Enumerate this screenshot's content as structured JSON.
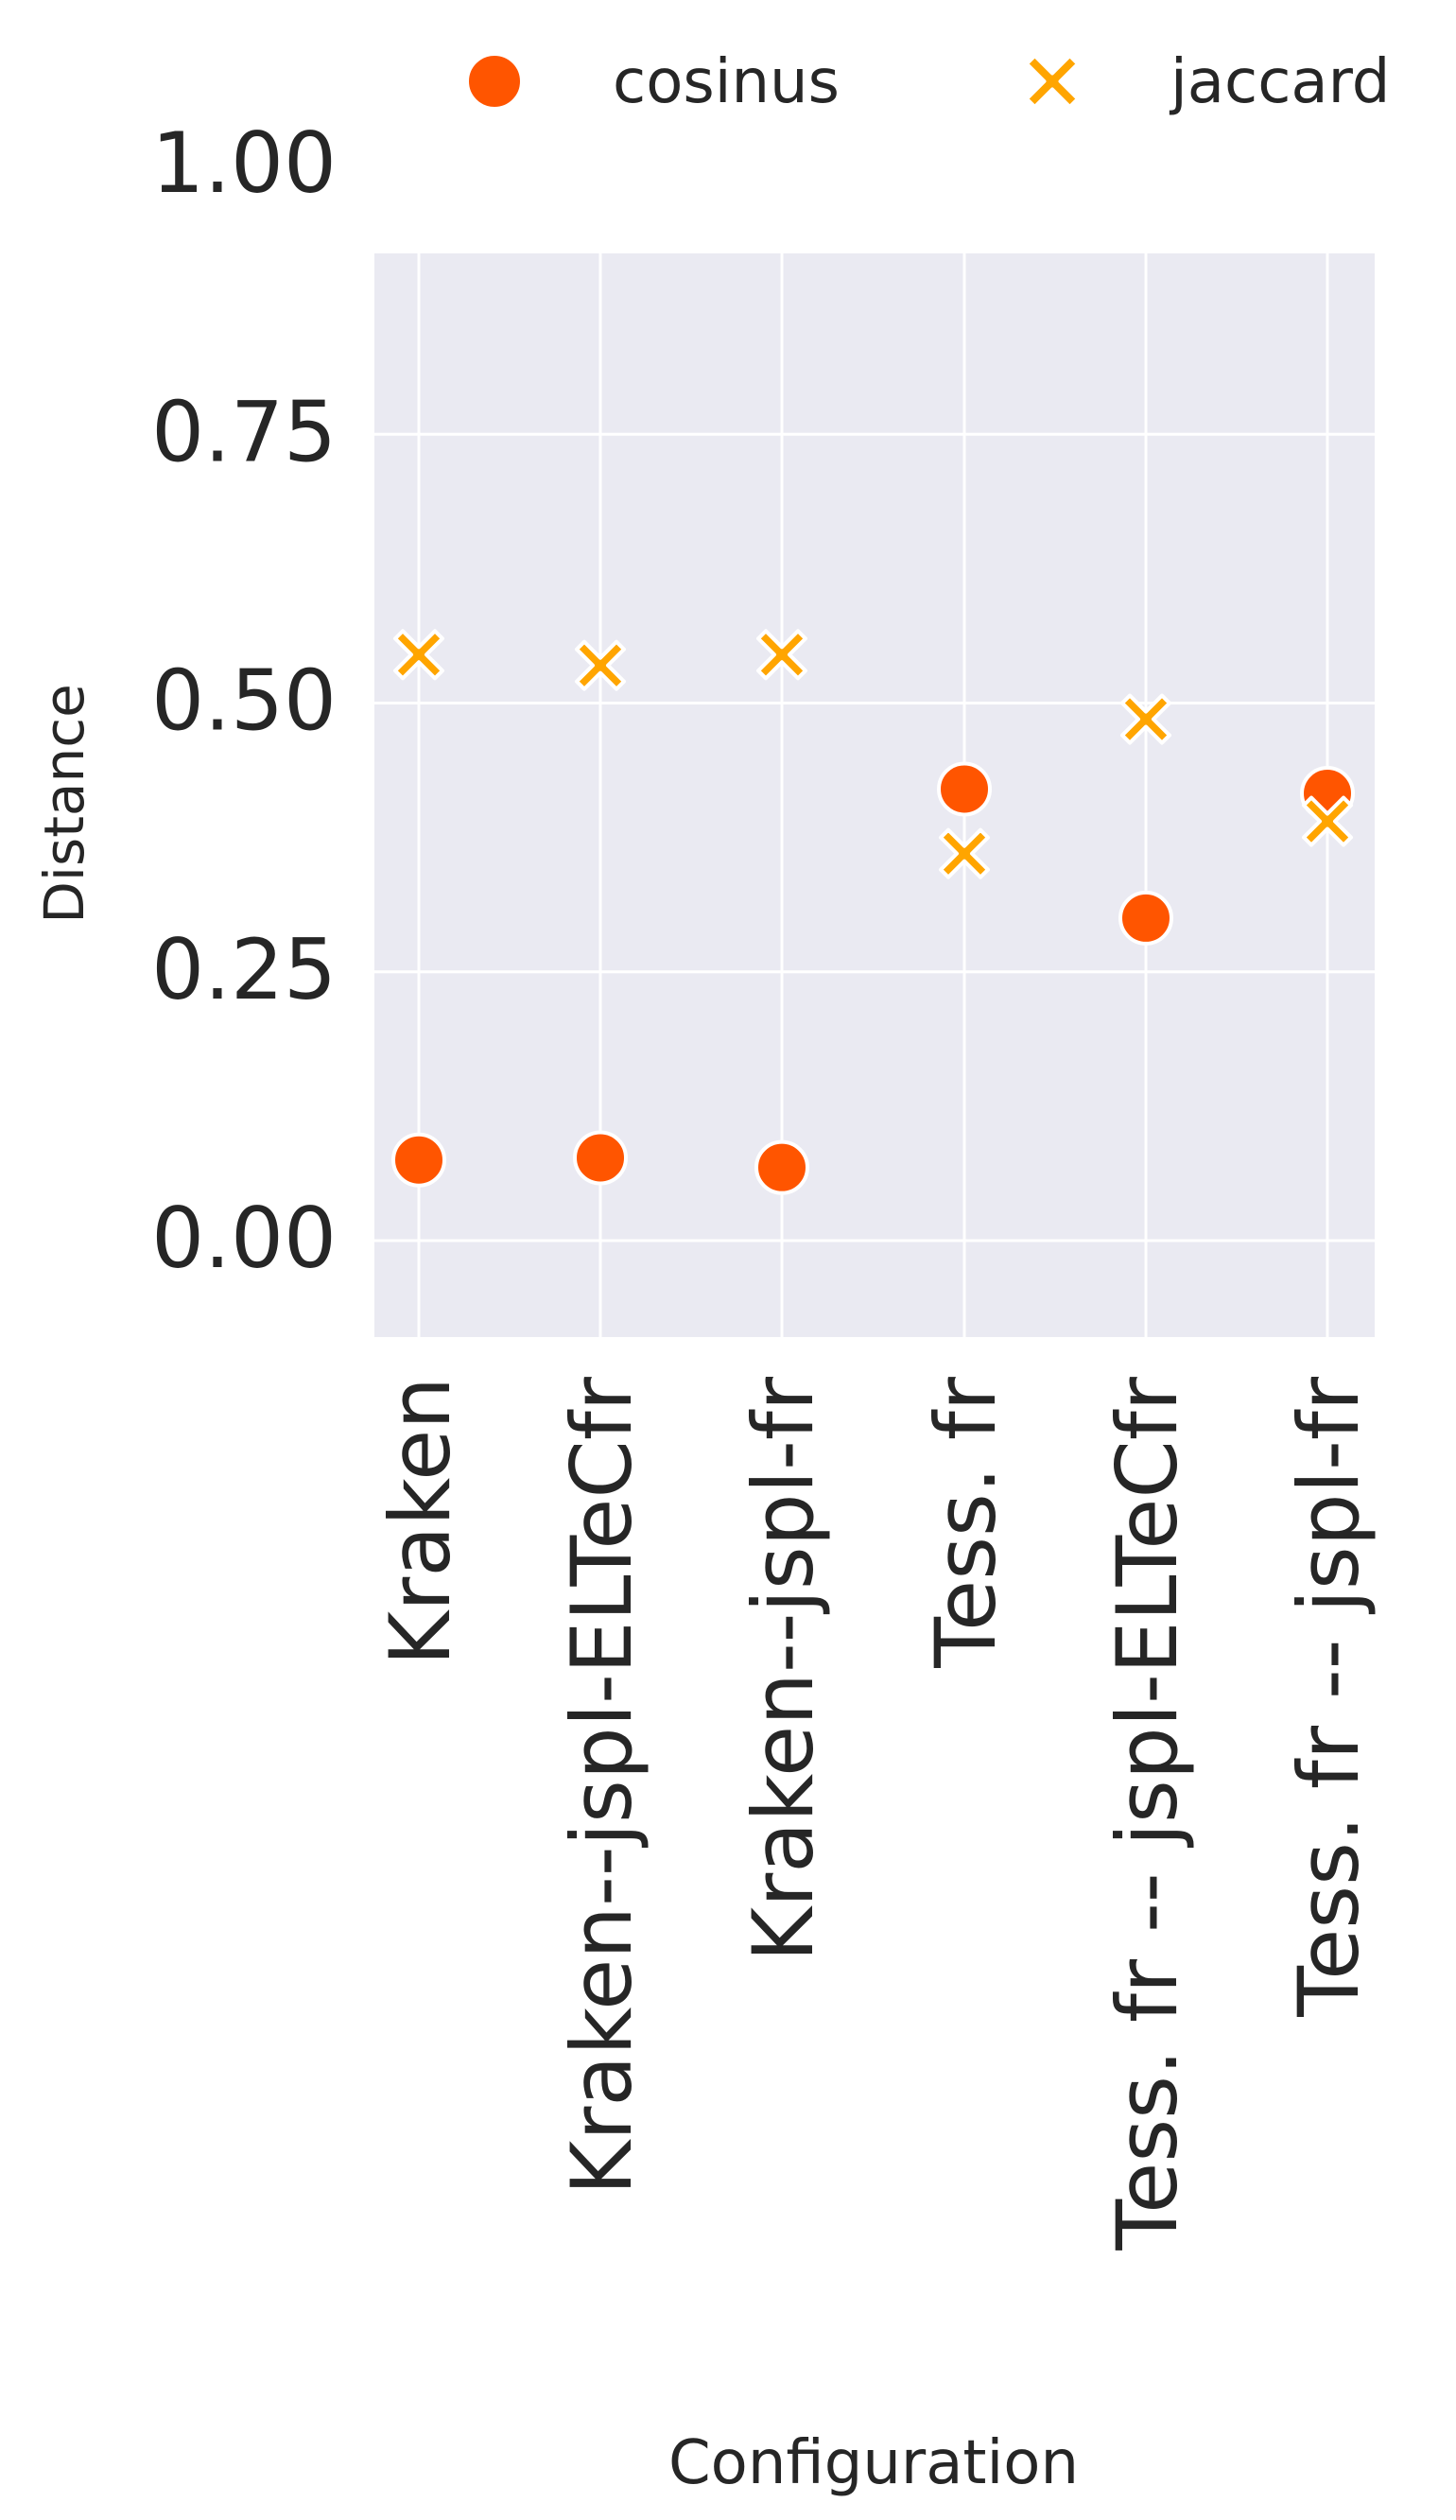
{
  "chart_data": {
    "type": "scatter",
    "title": "",
    "xlabel": "Configuration",
    "ylabel": "Distance",
    "categories": [
      "Kraken",
      "Kraken--jspl-ELTeCfr",
      "Kraken--jspl-fr",
      "Tess. fr",
      "Tess. fr -- jspl-ELTeCfr",
      "Tess. fr -- jspl-fr"
    ],
    "series": [
      {
        "name": "cosinus",
        "marker": "circle",
        "color": "#ff5500",
        "values": [
          0.075,
          0.077,
          0.068,
          0.42,
          0.3,
          0.416
        ]
      },
      {
        "name": "jaccard",
        "marker": "x",
        "color": "#ffa500",
        "values": [
          0.545,
          0.535,
          0.545,
          0.36,
          0.485,
          0.39
        ]
      }
    ],
    "ylim": [
      -0.1,
      1.0
    ],
    "yticks": [
      0.0,
      0.25,
      0.5,
      0.75,
      1.0
    ],
    "ytick_labels": [
      "0.00",
      "0.25",
      "0.50",
      "0.75",
      "1.00"
    ],
    "grid": true,
    "legend_position": "top-right",
    "background_color": "#eaeaf2",
    "grid_color": "#ffffff"
  }
}
